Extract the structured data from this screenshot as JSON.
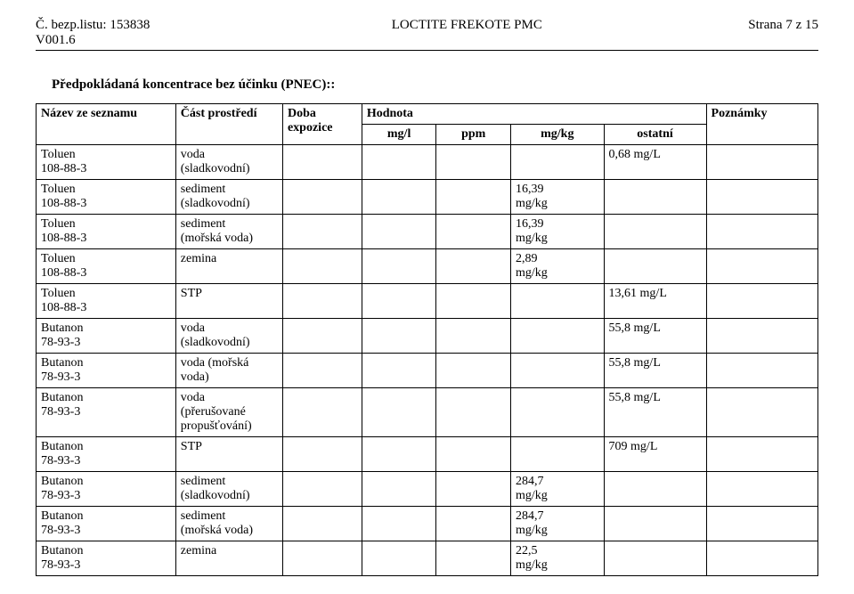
{
  "header": {
    "sheet_label": "Č. bezp.listu:",
    "sheet_no": "153838",
    "version_label": "V001.6",
    "product": "LOCTITE FREKOTE PMC",
    "page_label": "Strana 7 z 15"
  },
  "section_title": "Předpokládaná koncentrace bez účinku (PNEC)::",
  "table": {
    "head1": {
      "name": "Název ze seznamu",
      "env": "Část prostředí",
      "duration": "Doba expozice",
      "value": "Hodnota",
      "notes": "Poznámky"
    },
    "head2": {
      "mgl": "mg/l",
      "ppm": "ppm",
      "mgkg": "mg/kg",
      "ostatni": "ostatní"
    },
    "rows": [
      {
        "name_l1": "Toluen",
        "name_l2": "108-88-3",
        "env_l1": "voda",
        "env_l2": "(sladkovodní)",
        "mgkg": "",
        "ostatni": "0,68 mg/L"
      },
      {
        "name_l1": "Toluen",
        "name_l2": "108-88-3",
        "env_l1": "sediment",
        "env_l2": "(sladkovodní)",
        "mgkg": "16,39 mg/kg",
        "ostatni": ""
      },
      {
        "name_l1": "Toluen",
        "name_l2": "108-88-3",
        "env_l1": "sediment",
        "env_l2": "(mořská voda)",
        "mgkg": "16,39 mg/kg",
        "ostatni": ""
      },
      {
        "name_l1": "Toluen",
        "name_l2": "108-88-3",
        "env_l1": "zemina",
        "env_l2": "",
        "mgkg": "2,89 mg/kg",
        "ostatni": ""
      },
      {
        "name_l1": "Toluen",
        "name_l2": "108-88-3",
        "env_l1": "STP",
        "env_l2": "",
        "mgkg": "",
        "ostatni": "13,61 mg/L"
      },
      {
        "name_l1": "Butanon",
        "name_l2": "78-93-3",
        "env_l1": "voda",
        "env_l2": "(sladkovodní)",
        "mgkg": "",
        "ostatni": "55,8 mg/L"
      },
      {
        "name_l1": "Butanon",
        "name_l2": "78-93-3",
        "env_l1": "voda (mořská",
        "env_l2": "voda)",
        "mgkg": "",
        "ostatni": "55,8 mg/L"
      },
      {
        "name_l1": "Butanon",
        "name_l2": "78-93-3",
        "env_l1": "voda",
        "env_l2": "(přerušované",
        "env_l3": "propušťování)",
        "mgkg": "",
        "ostatni": "55,8 mg/L"
      },
      {
        "name_l1": "Butanon",
        "name_l2": "78-93-3",
        "env_l1": "STP",
        "env_l2": "",
        "mgkg": "",
        "ostatni": "709 mg/L"
      },
      {
        "name_l1": "Butanon",
        "name_l2": "78-93-3",
        "env_l1": "sediment",
        "env_l2": "(sladkovodní)",
        "mgkg": "284,7 mg/kg",
        "ostatni": ""
      },
      {
        "name_l1": "Butanon",
        "name_l2": "78-93-3",
        "env_l1": "sediment",
        "env_l2": "(mořská voda)",
        "mgkg": "284,7 mg/kg",
        "ostatni": ""
      },
      {
        "name_l1": "Butanon",
        "name_l2": "78-93-3",
        "env_l1": "zemina",
        "env_l2": "",
        "mgkg": "22,5 mg/kg",
        "ostatni": ""
      }
    ]
  }
}
